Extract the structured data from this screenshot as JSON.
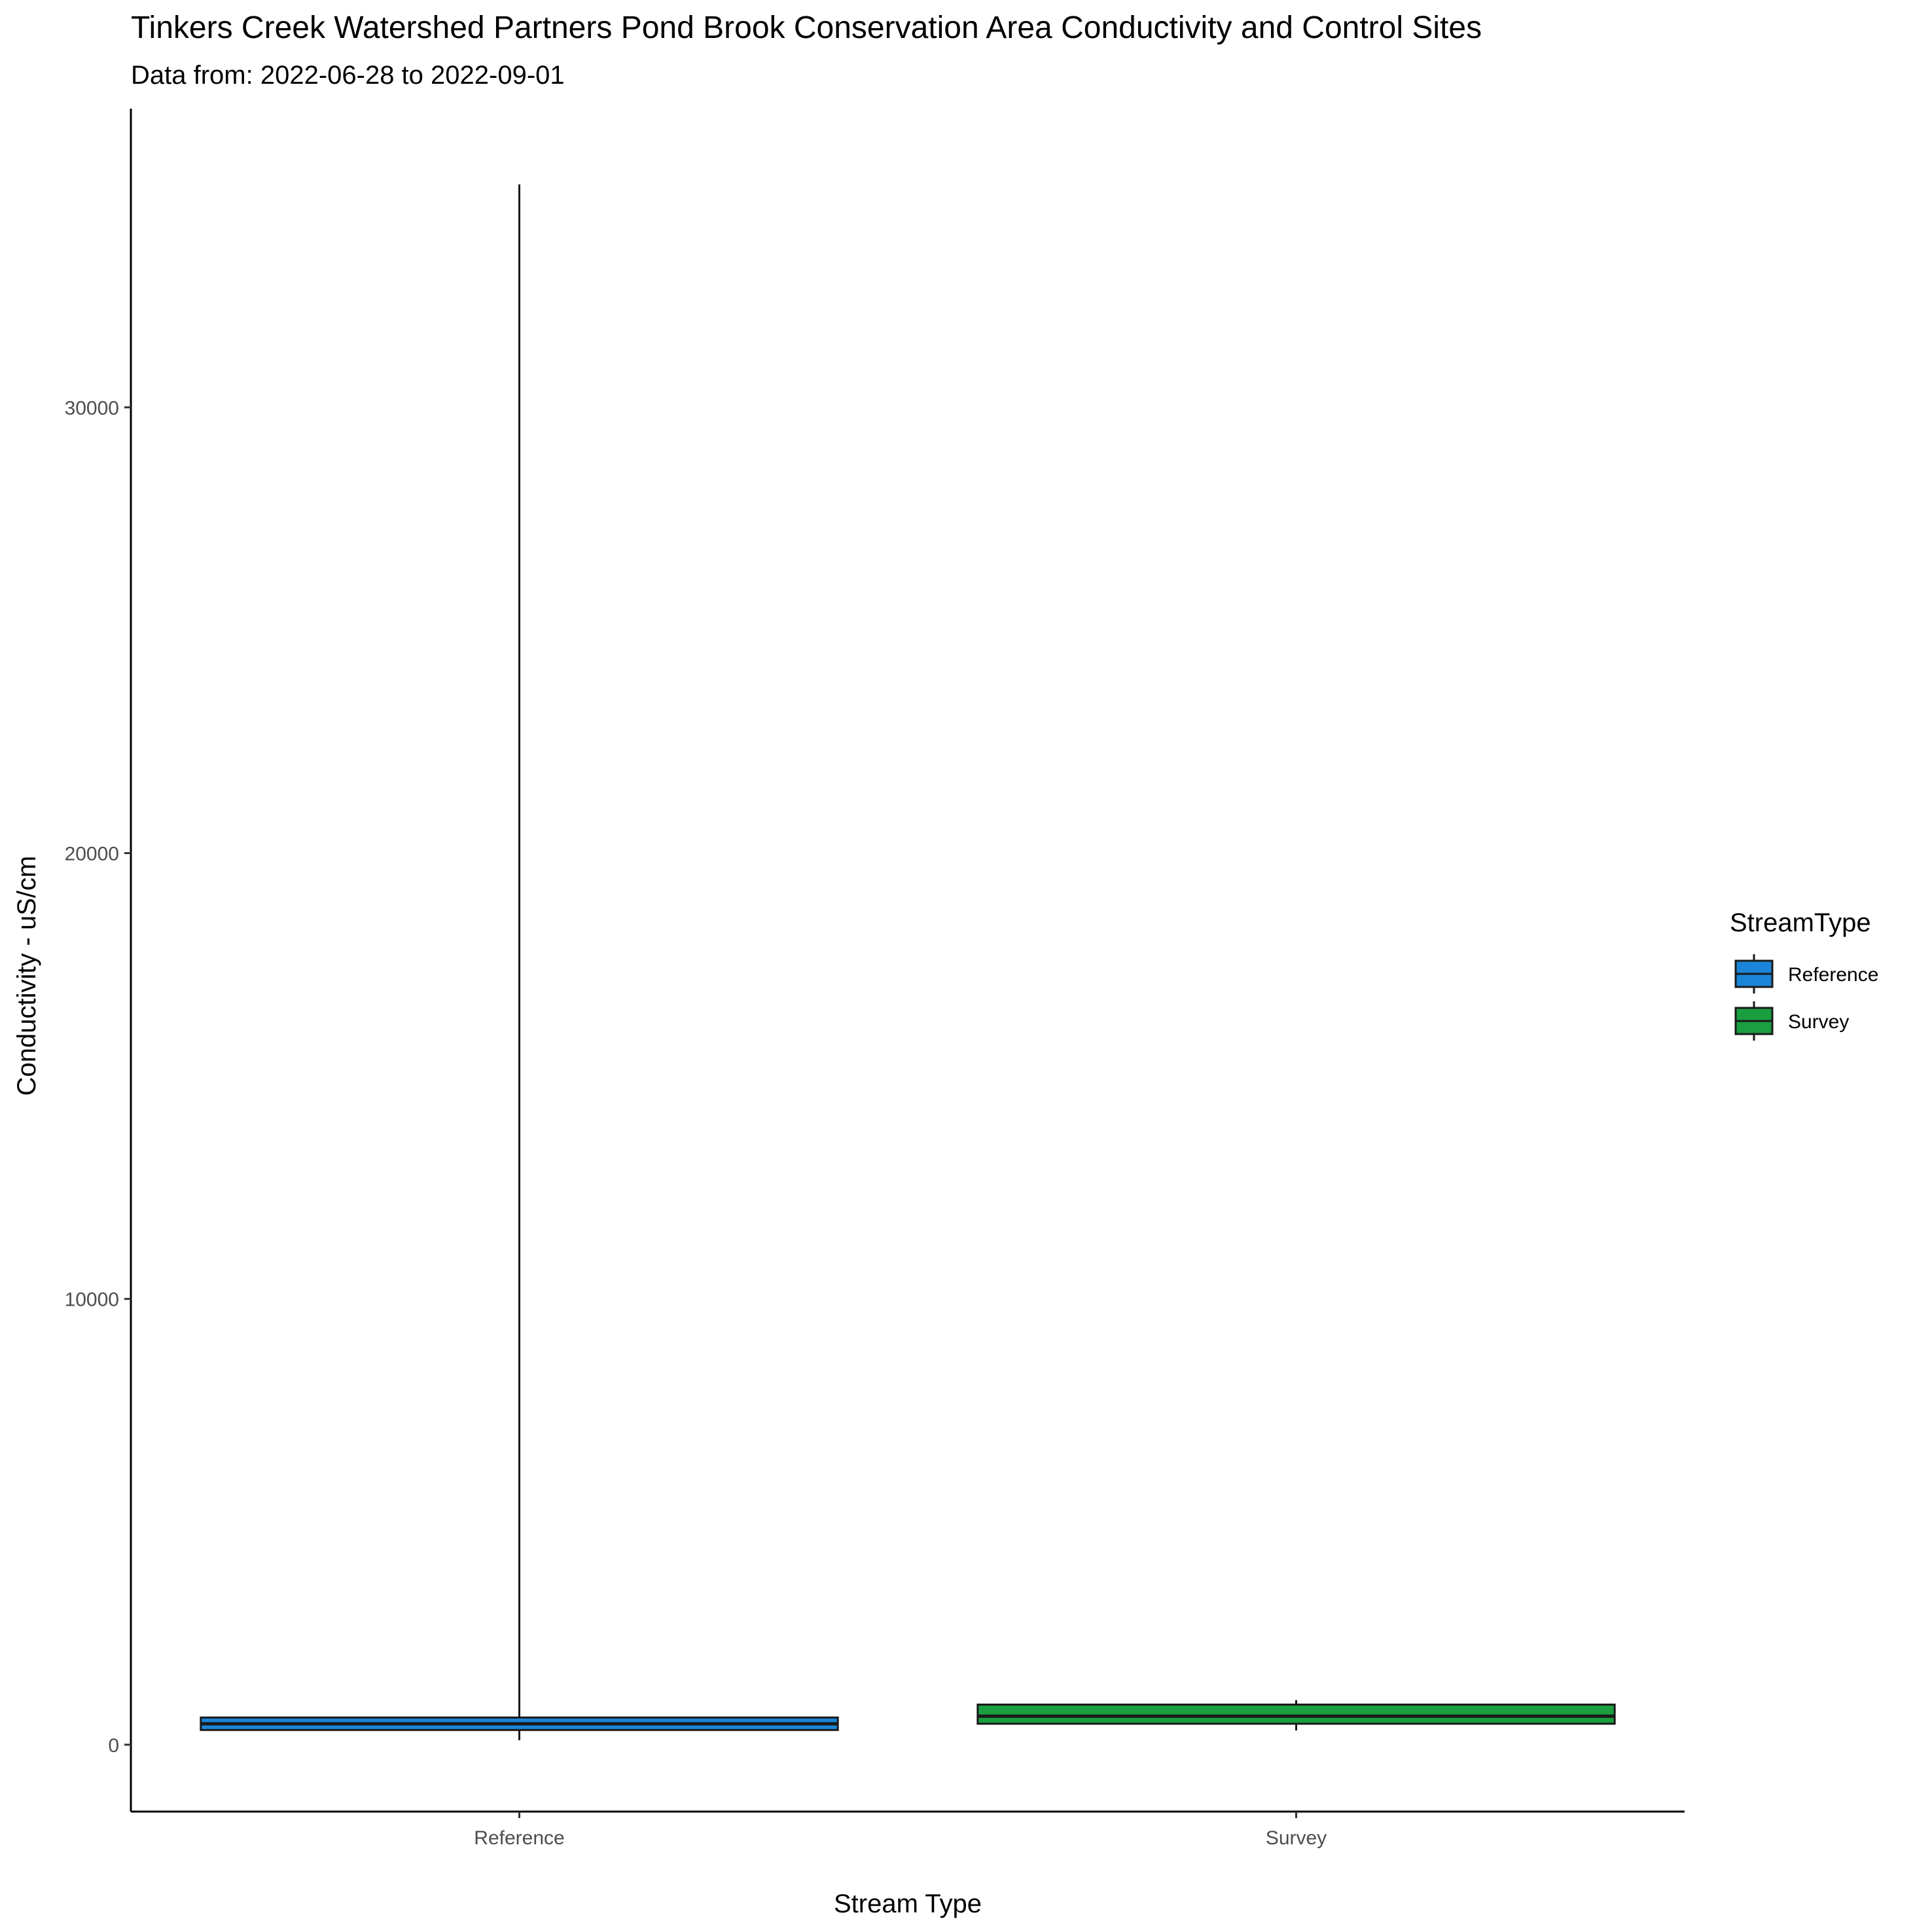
{
  "chart_data": {
    "type": "box",
    "title": "Tinkers Creek Watershed Partners Pond Brook Conservation Area Conductivity and Control Sites",
    "subtitle": "Data from: 2022-06-28 to 2022-09-01",
    "xlabel": "Stream Type",
    "ylabel": "Conductivity - uS/cm",
    "categories": [
      "Reference",
      "Survey"
    ],
    "ylim": [
      -1500,
      36700
    ],
    "yticks": [
      0,
      10000,
      20000,
      30000
    ],
    "ytick_labels": [
      "0",
      "10000",
      "20000",
      "30000"
    ],
    "grid": false,
    "legend": {
      "title": "StreamType",
      "position": "right",
      "entries": [
        "Reference",
        "Survey"
      ]
    },
    "series": [
      {
        "name": "Reference",
        "color": "#1a85d8",
        "min": 100,
        "q1": 330,
        "median": 470,
        "q3": 610,
        "max": 35000
      },
      {
        "name": "Survey",
        "color": "#1a9e40",
        "min": 320,
        "q1": 470,
        "median": 640,
        "q3": 900,
        "max": 1000
      }
    ]
  }
}
